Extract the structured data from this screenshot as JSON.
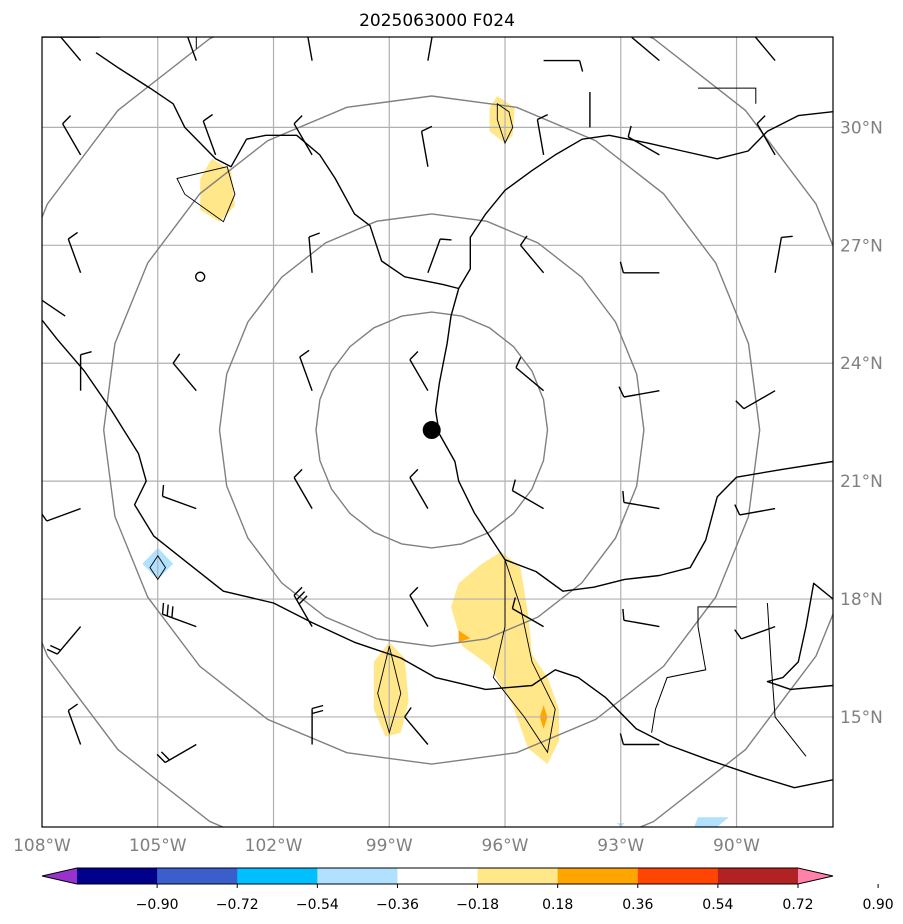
{
  "title": "2025063000 F024",
  "map": {
    "lon_range": [
      -108,
      -87.5
    ],
    "lat_range": [
      12.2,
      32.3
    ],
    "lon_ticks": [
      {
        "value": -108,
        "label": "108°W"
      },
      {
        "value": -105,
        "label": "105°W"
      },
      {
        "value": -102,
        "label": "102°W"
      },
      {
        "value": -99,
        "label": "99°W"
      },
      {
        "value": -96,
        "label": "96°W"
      },
      {
        "value": -93,
        "label": "93°W"
      },
      {
        "value": -90,
        "label": "90°W"
      }
    ],
    "lat_ticks": [
      {
        "value": 15,
        "label": "15°N"
      },
      {
        "value": 18,
        "label": "18°N"
      },
      {
        "value": 21,
        "label": "21°N"
      },
      {
        "value": 24,
        "label": "24°N"
      },
      {
        "value": 27,
        "label": "27°N"
      },
      {
        "value": 30,
        "label": "30°N"
      }
    ],
    "storm_center": {
      "lon": -97.9,
      "lat": 22.3
    },
    "range_rings_deg": [
      3,
      5.5,
      8.5,
      11.5
    ]
  },
  "colorbar": {
    "labels": [
      "−0.90",
      "−0.72",
      "−0.54",
      "−0.36",
      "−0.18",
      "0.18",
      "0.36",
      "0.54",
      "0.72",
      "0.90"
    ],
    "colors": [
      "#9932cc",
      "#00008b",
      "#3a5fcd",
      "#00bfff",
      "#b0e2ff",
      "#ffffff",
      "#ffe78a",
      "#ffa500",
      "#ff4500",
      "#b22222",
      "#ff82ab"
    ]
  },
  "fill_colors": {
    "yellow": "#ffe78a",
    "orange": "#ffa500",
    "lightblue": "#b0e2ff"
  },
  "shaded_regions": [
    {
      "level": "yellow",
      "points": [
        [
          -96.2,
          30.8
        ],
        [
          -95.75,
          30.5
        ],
        [
          -95.8,
          29.8
        ],
        [
          -96.0,
          29.6
        ],
        [
          -96.4,
          29.9
        ],
        [
          -96.4,
          30.5
        ]
      ]
    },
    {
      "level": "yellow",
      "points": [
        [
          -103.6,
          29.2
        ],
        [
          -103.1,
          28.9
        ],
        [
          -103.0,
          28.0
        ],
        [
          -103.4,
          27.6
        ],
        [
          -103.9,
          27.9
        ],
        [
          -103.9,
          28.7
        ]
      ]
    },
    {
      "level": "yellow",
      "points": [
        [
          -96.1,
          19.2
        ],
        [
          -95.6,
          18.8
        ],
        [
          -95.4,
          17.6
        ],
        [
          -95.3,
          16.6
        ],
        [
          -94.9,
          16.0
        ],
        [
          -94.6,
          15.2
        ],
        [
          -94.6,
          14.4
        ],
        [
          -94.9,
          13.8
        ],
        [
          -95.4,
          14.2
        ],
        [
          -95.8,
          15.3
        ],
        [
          -96.4,
          16.3
        ],
        [
          -97.1,
          16.8
        ],
        [
          -97.4,
          17.8
        ],
        [
          -97.2,
          18.4
        ],
        [
          -96.6,
          18.9
        ]
      ]
    },
    {
      "level": "yellow",
      "points": [
        [
          -99.0,
          16.9
        ],
        [
          -98.6,
          16.5
        ],
        [
          -98.5,
          15.4
        ],
        [
          -98.7,
          14.6
        ],
        [
          -99.1,
          14.5
        ],
        [
          -99.4,
          15.2
        ],
        [
          -99.4,
          16.4
        ]
      ]
    },
    {
      "level": "orange",
      "points": [
        [
          -97.2,
          17.2
        ],
        [
          -96.9,
          17.0
        ],
        [
          -97.2,
          16.9
        ]
      ]
    },
    {
      "level": "orange",
      "points": [
        [
          -95.0,
          15.3
        ],
        [
          -94.9,
          15.0
        ],
        [
          -95.0,
          14.7
        ],
        [
          -95.1,
          15.0
        ]
      ]
    },
    {
      "level": "lightblue",
      "points": [
        [
          -105.0,
          19.3
        ],
        [
          -104.6,
          18.9
        ],
        [
          -105.0,
          18.5
        ],
        [
          -105.4,
          18.9
        ]
      ]
    },
    {
      "level": "lightblue",
      "points": [
        [
          -91.0,
          12.45
        ],
        [
          -90.2,
          12.45
        ],
        [
          -90.5,
          12.2
        ],
        [
          -91.1,
          12.2
        ]
      ]
    },
    {
      "level": "lightblue",
      "points": [
        [
          -93.1,
          12.3
        ],
        [
          -92.9,
          12.3
        ],
        [
          -93.0,
          12.2
        ]
      ]
    }
  ],
  "contour_outlines": [
    [
      [
        -96.2,
        30.6
      ],
      [
        -95.9,
        30.4
      ],
      [
        -95.8,
        30.0
      ],
      [
        -96.0,
        29.6
      ],
      [
        -96.2,
        30.2
      ]
    ],
    [
      [
        -104.5,
        28.7
      ],
      [
        -103.2,
        29.0
      ],
      [
        -103.0,
        28.3
      ],
      [
        -103.3,
        27.6
      ],
      [
        -104.3,
        28.3
      ]
    ],
    [
      [
        -96.0,
        19.0
      ],
      [
        -95.6,
        17.8
      ],
      [
        -95.3,
        16.4
      ],
      [
        -94.7,
        15.2
      ],
      [
        -94.9,
        14.1
      ],
      [
        -95.5,
        15.0
      ],
      [
        -96.3,
        16.0
      ],
      [
        -96.0,
        17.3
      ]
    ],
    [
      [
        -99.0,
        16.8
      ],
      [
        -98.7,
        15.6
      ],
      [
        -99.0,
        14.6
      ],
      [
        -99.3,
        15.6
      ]
    ],
    [
      [
        -105.0,
        19.1
      ],
      [
        -104.8,
        18.8
      ],
      [
        -105.0,
        18.5
      ],
      [
        -105.2,
        18.8
      ]
    ]
  ],
  "barbs": [
    {
      "lon": -107,
      "lat": 29.3,
      "dir": 330,
      "flags": [
        1
      ]
    },
    {
      "lon": -103.5,
      "lat": 29.3,
      "dir": 340,
      "flags": [
        1
      ]
    },
    {
      "lon": -101,
      "lat": 29.3,
      "dir": 330,
      "flags": [
        1
      ]
    },
    {
      "lon": -98,
      "lat": 29.0,
      "dir": 350,
      "flags": [
        1
      ]
    },
    {
      "lon": -107,
      "lat": 31.7,
      "dir": 320,
      "flags": [
        1
      ]
    },
    {
      "lon": -104,
      "lat": 31.7,
      "dir": 340,
      "flags": [
        1
      ]
    },
    {
      "lon": -101,
      "lat": 31.7,
      "dir": 350,
      "flags": [
        1
      ]
    },
    {
      "lon": -98,
      "lat": 31.7,
      "dir": 10,
      "flags": [
        1
      ]
    },
    {
      "lon": -95,
      "lat": 31.7,
      "dir": 90,
      "flags": [
        1
      ]
    },
    {
      "lon": -92,
      "lat": 31.7,
      "dir": 310,
      "flags": [
        1
      ]
    },
    {
      "lon": -89,
      "lat": 31.7,
      "dir": 320,
      "flags": [
        1
      ]
    },
    {
      "lon": -95,
      "lat": 29.3,
      "dir": 350,
      "flags": [
        1
      ]
    },
    {
      "lon": -92,
      "lat": 29.3,
      "dir": 300,
      "flags": [
        1
      ]
    },
    {
      "lon": -89,
      "lat": 29.3,
      "dir": 330,
      "flags": [
        1
      ]
    },
    {
      "lon": -107,
      "lat": 26.3,
      "dir": 340,
      "flags": [
        1
      ]
    },
    {
      "lon": -101,
      "lat": 26.3,
      "dir": 355,
      "flags": [
        1
      ]
    },
    {
      "lon": -98,
      "lat": 26.3,
      "dir": 20,
      "flags": [
        1
      ]
    },
    {
      "lon": -95,
      "lat": 26.3,
      "dir": 320,
      "flags": [
        1
      ]
    },
    {
      "lon": -92,
      "lat": 26.3,
      "dir": 270,
      "flags": [
        1
      ]
    },
    {
      "lon": -89,
      "lat": 26.3,
      "dir": 10,
      "flags": [
        1
      ]
    },
    {
      "lon": -107,
      "lat": 23.3,
      "dir": 0,
      "flags": [
        1
      ]
    },
    {
      "lon": -104,
      "lat": 23.3,
      "dir": 320,
      "flags": [
        1
      ]
    },
    {
      "lon": -101,
      "lat": 23.3,
      "dir": 340,
      "flags": [
        1
      ]
    },
    {
      "lon": -98,
      "lat": 23.3,
      "dir": 330,
      "flags": [
        1
      ]
    },
    {
      "lon": -95,
      "lat": 23.3,
      "dir": 310,
      "flags": [
        1
      ]
    },
    {
      "lon": -92,
      "lat": 23.3,
      "dir": 260,
      "flags": [
        1
      ]
    },
    {
      "lon": -89,
      "lat": 23.3,
      "dir": 240,
      "flags": [
        1
      ]
    },
    {
      "lon": -107,
      "lat": 20.3,
      "dir": 250,
      "flags": [
        1
      ]
    },
    {
      "lon": -104,
      "lat": 20.3,
      "dir": 290,
      "flags": [
        1
      ]
    },
    {
      "lon": -101,
      "lat": 20.3,
      "dir": 330,
      "flags": [
        1
      ]
    },
    {
      "lon": -98,
      "lat": 20.3,
      "dir": 330,
      "flags": [
        1
      ]
    },
    {
      "lon": -95,
      "lat": 20.3,
      "dir": 300,
      "flags": [
        1
      ]
    },
    {
      "lon": -92,
      "lat": 20.3,
      "dir": 280,
      "flags": [
        1
      ]
    },
    {
      "lon": -89,
      "lat": 20.3,
      "dir": 260,
      "flags": [
        1
      ]
    },
    {
      "lon": -107,
      "lat": 17.3,
      "dir": 220,
      "flags": [
        1,
        1
      ]
    },
    {
      "lon": -104,
      "lat": 17.3,
      "dir": 290,
      "flags": [
        1,
        1,
        1
      ]
    },
    {
      "lon": -101,
      "lat": 17.3,
      "dir": 330,
      "flags": [
        1,
        1,
        1
      ]
    },
    {
      "lon": -98,
      "lat": 17.3,
      "dir": 330,
      "flags": [
        1
      ]
    },
    {
      "lon": -95,
      "lat": 17.3,
      "dir": 300,
      "flags": [
        1
      ]
    },
    {
      "lon": -92,
      "lat": 17.3,
      "dir": 280,
      "flags": [
        1
      ]
    },
    {
      "lon": -89,
      "lat": 17.3,
      "dir": 250,
      "flags": [
        1
      ]
    },
    {
      "lon": -107,
      "lat": 14.3,
      "dir": 340,
      "flags": [
        1
      ]
    },
    {
      "lon": -104,
      "lat": 14.3,
      "dir": 240,
      "flags": [
        1,
        1
      ]
    },
    {
      "lon": -101,
      "lat": 14.3,
      "dir": 0,
      "flags": [
        1,
        1
      ]
    },
    {
      "lon": -98,
      "lat": 14.3,
      "dir": 320,
      "flags": [
        1
      ]
    },
    {
      "lon": -92,
      "lat": 14.3,
      "dir": 270,
      "flags": [
        1
      ]
    }
  ],
  "coastlines": [
    [
      [
        -108,
        32.3
      ],
      [
        -106.5,
        32.3
      ]
    ],
    [
      [
        -106.6,
        31.9
      ],
      [
        -106.0,
        31.5
      ],
      [
        -105.2,
        31.0
      ],
      [
        -104.6,
        30.6
      ],
      [
        -104.3,
        30.0
      ],
      [
        -103.5,
        29.2
      ],
      [
        -103.1,
        29.0
      ],
      [
        -102.7,
        29.7
      ],
      [
        -102.2,
        29.8
      ],
      [
        -101.4,
        29.8
      ],
      [
        -100.8,
        29.3
      ],
      [
        -100.4,
        28.7
      ],
      [
        -99.9,
        27.8
      ],
      [
        -99.5,
        27.5
      ],
      [
        -99.2,
        26.6
      ],
      [
        -98.6,
        26.2
      ],
      [
        -97.6,
        26.0
      ],
      [
        -97.2,
        25.9
      ]
    ],
    [
      [
        -97.2,
        25.9
      ],
      [
        -97.4,
        25.2
      ],
      [
        -97.5,
        24.5
      ],
      [
        -97.7,
        23.5
      ],
      [
        -97.8,
        22.8
      ],
      [
        -97.7,
        22.2
      ],
      [
        -97.3,
        21.5
      ],
      [
        -97.2,
        21.0
      ],
      [
        -96.8,
        20.2
      ],
      [
        -96.4,
        19.6
      ],
      [
        -96.0,
        19.0
      ],
      [
        -95.2,
        18.7
      ],
      [
        -94.5,
        18.2
      ],
      [
        -93.7,
        18.3
      ],
      [
        -92.9,
        18.5
      ],
      [
        -92.0,
        18.6
      ],
      [
        -91.2,
        18.8
      ],
      [
        -90.8,
        19.5
      ],
      [
        -90.5,
        20.6
      ],
      [
        -90.0,
        21.1
      ],
      [
        -88.8,
        21.3
      ],
      [
        -87.5,
        21.5
      ]
    ],
    [
      [
        -87.5,
        18.0
      ],
      [
        -88.0,
        18.4
      ],
      [
        -88.2,
        17.3
      ],
      [
        -88.4,
        16.4
      ],
      [
        -88.8,
        16.0
      ],
      [
        -89.2,
        15.9
      ],
      [
        -88.6,
        15.7
      ],
      [
        -87.5,
        15.8
      ]
    ],
    [
      [
        -87.5,
        13.4
      ],
      [
        -88.5,
        13.2
      ],
      [
        -89.5,
        13.5
      ],
      [
        -90.7,
        13.9
      ],
      [
        -91.8,
        14.3
      ],
      [
        -92.6,
        14.7
      ],
      [
        -93.4,
        15.5
      ],
      [
        -94.1,
        16.0
      ],
      [
        -94.7,
        16.2
      ],
      [
        -95.3,
        15.8
      ],
      [
        -96.5,
        15.7
      ],
      [
        -97.8,
        16.0
      ],
      [
        -98.7,
        16.5
      ],
      [
        -99.9,
        16.9
      ],
      [
        -101.0,
        17.4
      ],
      [
        -102.0,
        17.9
      ],
      [
        -103.3,
        18.2
      ],
      [
        -104.2,
        18.9
      ],
      [
        -105.1,
        19.6
      ],
      [
        -105.6,
        20.4
      ],
      [
        -105.3,
        21.0
      ],
      [
        -105.5,
        21.7
      ],
      [
        -106.2,
        22.8
      ],
      [
        -106.9,
        23.8
      ],
      [
        -107.6,
        24.6
      ],
      [
        -108,
        25.1
      ]
    ],
    [
      [
        -108,
        25.6
      ],
      [
        -107.4,
        25.2
      ]
    ],
    [
      [
        -97.2,
        25.9
      ],
      [
        -96.9,
        26.4
      ],
      [
        -96.9,
        27.2
      ],
      [
        -96.5,
        27.8
      ],
      [
        -96.0,
        28.4
      ],
      [
        -95.3,
        28.9
      ],
      [
        -94.7,
        29.3
      ],
      [
        -94.0,
        29.7
      ],
      [
        -93.3,
        29.8
      ],
      [
        -92.3,
        29.6
      ],
      [
        -91.4,
        29.4
      ],
      [
        -90.5,
        29.2
      ],
      [
        -89.7,
        29.4
      ],
      [
        -89.2,
        29.9
      ],
      [
        -88.4,
        30.3
      ],
      [
        -87.5,
        30.4
      ]
    ],
    [
      [
        -93.8,
        30.0
      ],
      [
        -93.8,
        30.9
      ]
    ]
  ],
  "borders": [
    [
      [
        -106.5,
        32.3
      ],
      [
        -104.0,
        32.3
      ],
      [
        -104.0,
        32.0
      ]
    ],
    [
      [
        -90.0,
        17.8
      ],
      [
        -91.0,
        17.8
      ],
      [
        -91.0,
        17.3
      ],
      [
        -90.8,
        16.2
      ],
      [
        -91.8,
        16.0
      ],
      [
        -92.1,
        15.2
      ],
      [
        -92.2,
        14.6
      ]
    ],
    [
      [
        -89.2,
        17.9
      ],
      [
        -89.1,
        16.3
      ],
      [
        -89.0,
        15.0
      ],
      [
        -88.2,
        14.0
      ]
    ],
    [
      [
        -91.0,
        31.0
      ],
      [
        -89.5,
        31.0
      ],
      [
        -89.5,
        30.6
      ]
    ]
  ]
}
